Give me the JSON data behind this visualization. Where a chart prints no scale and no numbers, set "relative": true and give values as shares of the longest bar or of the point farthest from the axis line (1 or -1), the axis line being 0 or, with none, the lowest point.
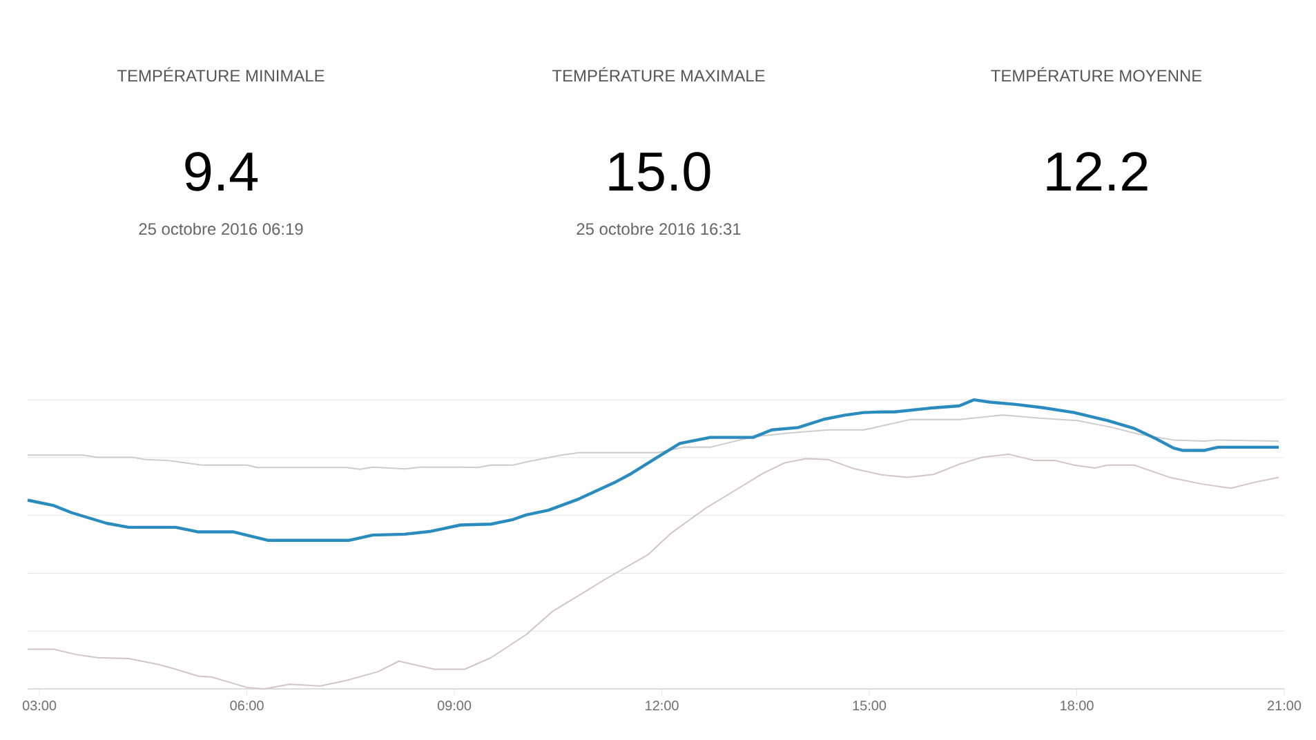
{
  "chart_data": [
    {
      "type": "other",
      "title": "TEMPÉRATURE MINIMALE",
      "annotations": [
        "9.4",
        "25 octobre 2016 06:19"
      ]
    },
    {
      "type": "other",
      "title": "TEMPÉRATURE MAXIMALE",
      "annotations": [
        "15.0",
        "25 octobre 2016 16:31"
      ]
    },
    {
      "type": "other",
      "title": "TEMPÉRATURE MOYENNE",
      "annotations": [
        "12.2"
      ]
    },
    {
      "type": "line",
      "relative": true,
      "grid": "y",
      "marker": "none",
      "xlim": [
        2.83,
        21
      ],
      "xticks": [
        {
          "value": 3,
          "label": "03:00"
        },
        {
          "value": 6,
          "label": "06:00"
        },
        {
          "value": 9,
          "label": "09:00"
        },
        {
          "value": 12,
          "label": "12:00"
        },
        {
          "value": 15,
          "label": "15:00"
        },
        {
          "value": 18,
          "label": "18:00"
        },
        {
          "value": 21,
          "label": "21:00"
        }
      ],
      "series": [
        {
          "color": "#d3c5c5",
          "x": [
            2.83,
            3.21,
            3.53,
            3.84,
            4.29,
            4.73,
            4.97,
            5.3,
            5.49,
            6.0,
            6.25,
            6.62,
            7.06,
            7.44,
            7.9,
            8.2,
            8.71,
            9.15,
            9.53,
            10.04,
            10.42,
            10.8,
            11.18,
            11.81,
            12.13,
            12.64,
            13.02,
            13.46,
            13.78,
            14.08,
            14.41,
            14.79,
            15.17,
            15.55,
            15.93,
            16.3,
            16.63,
            17.01,
            17.39,
            17.69,
            17.96,
            18.26,
            18.45,
            18.83,
            19.34,
            19.78,
            20.23,
            20.54,
            20.92
          ],
          "values": [
            0.137,
            0.137,
            0.119,
            0.108,
            0.105,
            0.084,
            0.068,
            0.044,
            0.041,
            0.005,
            0,
            0.016,
            0.01,
            0.029,
            0.06,
            0.096,
            0.068,
            0.068,
            0.108,
            0.188,
            0.268,
            0.323,
            0.379,
            0.466,
            0.538,
            0.626,
            0.681,
            0.745,
            0.782,
            0.796,
            0.793,
            0.761,
            0.741,
            0.732,
            0.742,
            0.777,
            0.801,
            0.812,
            0.79,
            0.79,
            0.774,
            0.764,
            0.774,
            0.774,
            0.732,
            0.71,
            0.694,
            0.713,
            0.732
          ]
        },
        {
          "color": "#cccccc",
          "x": [
            2.83,
            3.63,
            3.84,
            4.35,
            4.54,
            4.86,
            5.35,
            6.0,
            6.15,
            7.44,
            7.63,
            7.82,
            8.28,
            8.52,
            9.09,
            9.34,
            9.53,
            9.85,
            10.04,
            10.55,
            10.8,
            11.94,
            12.32,
            12.7,
            13.32,
            13.84,
            14.41,
            14.92,
            15.17,
            15.6,
            16.3,
            16.93,
            17.5,
            18.01,
            18.52,
            18.9,
            19.4,
            19.85,
            20.04,
            20.92
          ],
          "values": [
            0.809,
            0.809,
            0.801,
            0.801,
            0.793,
            0.79,
            0.774,
            0.774,
            0.766,
            0.766,
            0.76,
            0.767,
            0.761,
            0.767,
            0.767,
            0.766,
            0.774,
            0.774,
            0.785,
            0.809,
            0.817,
            0.817,
            0.836,
            0.836,
            0.872,
            0.885,
            0.896,
            0.896,
            0.909,
            0.932,
            0.932,
            0.947,
            0.936,
            0.928,
            0.904,
            0.881,
            0.861,
            0.857,
            0.861,
            0.857
          ]
        },
        {
          "color": "#2a8bbf",
          "x": [
            2.83,
            3.21,
            3.46,
            3.97,
            4.29,
            4.97,
            5.3,
            5.81,
            6.3,
            7.48,
            7.82,
            8.28,
            8.66,
            9.09,
            9.53,
            9.85,
            10.04,
            10.36,
            10.8,
            11.31,
            11.56,
            11.88,
            12.26,
            12.7,
            13.32,
            13.59,
            13.97,
            14.35,
            14.65,
            14.92,
            15.17,
            15.36,
            15.87,
            16.3,
            16.51,
            16.74,
            17.12,
            17.5,
            17.96,
            18.45,
            18.83,
            19.15,
            19.4,
            19.53,
            19.85,
            20.04,
            20.92
          ],
          "values": [
            0.653,
            0.634,
            0.61,
            0.573,
            0.559,
            0.559,
            0.543,
            0.543,
            0.514,
            0.514,
            0.532,
            0.535,
            0.545,
            0.567,
            0.57,
            0.586,
            0.602,
            0.618,
            0.657,
            0.713,
            0.745,
            0.793,
            0.849,
            0.87,
            0.87,
            0.896,
            0.904,
            0.933,
            0.947,
            0.956,
            0.958,
            0.958,
            0.971,
            0.979,
            1,
            0.992,
            0.984,
            0.973,
            0.956,
            0.928,
            0.901,
            0.865,
            0.833,
            0.825,
            0.825,
            0.836,
            0.836
          ]
        }
      ]
    }
  ]
}
